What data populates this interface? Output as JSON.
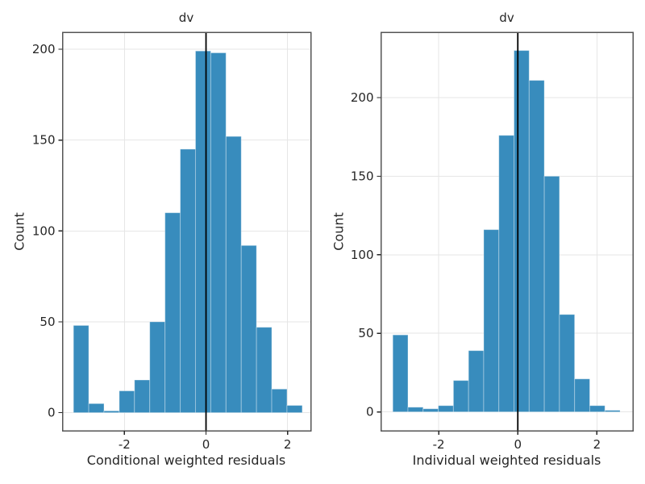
{
  "style": {
    "background": "#ffffff",
    "bar_fill": "#388cbd",
    "bar_edge": "rgba(255,255,255,0.35)",
    "grid_color": "#e6e6e6",
    "spine_color": "#545454",
    "refline_color": "#000000",
    "text_color": "#262626"
  },
  "chart_data": [
    {
      "type": "bar",
      "kind": "histogram",
      "title": "dv",
      "xlabel": "Conditional weighted residuals",
      "ylabel": "Count",
      "bin_start": -3.25,
      "bin_width": 0.374,
      "counts": [
        48,
        5,
        1,
        12,
        18,
        50,
        110,
        145,
        199,
        198,
        152,
        92,
        47,
        13,
        4
      ],
      "refline_x": 0,
      "xticks": [
        -2,
        0,
        2
      ],
      "yticks": [
        0,
        50,
        100,
        150,
        200
      ],
      "xlim": [
        -3.52,
        2.57
      ],
      "ylim": [
        -9.95,
        209.3
      ],
      "grid": true,
      "legend": false
    },
    {
      "type": "bar",
      "kind": "histogram",
      "title": "dv",
      "xlabel": "Individual weighted residuals",
      "ylabel": "Count",
      "bin_start": -3.16,
      "bin_width": 0.383,
      "counts": [
        49,
        3,
        2,
        4,
        20,
        39,
        116,
        176,
        230,
        211,
        150,
        62,
        21,
        4,
        1
      ],
      "refline_x": 0,
      "xticks": [
        -2,
        0,
        2
      ],
      "yticks": [
        0,
        50,
        100,
        150,
        200
      ],
      "xlim": [
        -3.46,
        2.91
      ],
      "ylim": [
        -12.0,
        241.6
      ],
      "grid": true,
      "legend": false
    }
  ]
}
